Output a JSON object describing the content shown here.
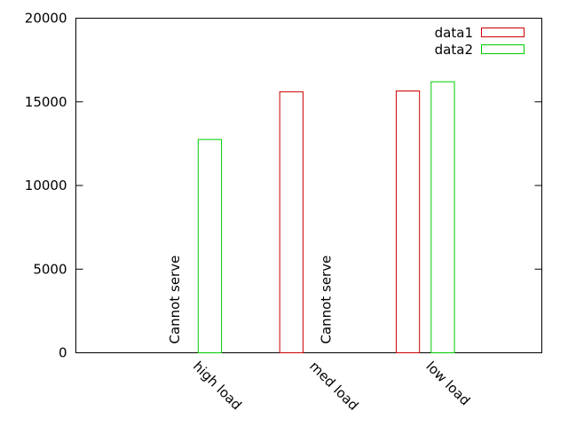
{
  "chart_data": {
    "type": "bar",
    "categories": [
      "high load",
      "med load",
      "low load"
    ],
    "series": [
      {
        "name": "data1",
        "color": "#cc0000",
        "values": [
          null,
          15600,
          15650
        ]
      },
      {
        "name": "data2",
        "color": "#00cc00",
        "values": [
          12750,
          null,
          16200
        ]
      }
    ],
    "annotations": [
      "Cannot serve",
      "Cannot serve"
    ],
    "ylim": [
      0,
      20000
    ],
    "yticks": [
      0,
      5000,
      10000,
      15000,
      20000
    ],
    "legend": "top-right",
    "grid": false
  }
}
